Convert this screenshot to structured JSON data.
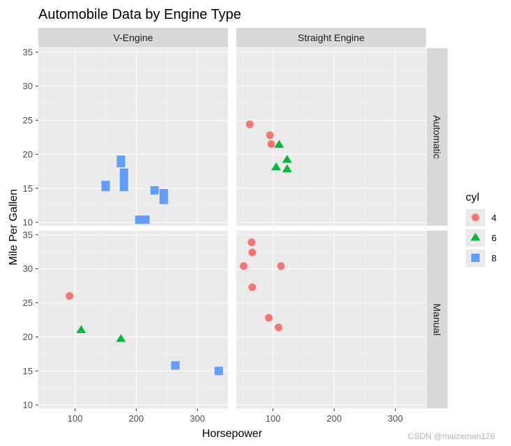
{
  "chart_data": {
    "type": "scatter",
    "title": "Automobile Data by Engine Type",
    "xlabel": "Horsepower",
    "ylabel": "Mile Per Gallen",
    "xlim": [
      40,
      350
    ],
    "ylim": [
      9.5,
      35.6
    ],
    "x_ticks": [
      100,
      200,
      300
    ],
    "y_ticks": [
      10,
      15,
      20,
      25,
      30,
      35
    ],
    "grid": true,
    "facet_columns": [
      "V-Engine",
      "Straight Engine"
    ],
    "facet_rows": [
      "Automatic",
      "Manual"
    ],
    "legend": {
      "title": "cyl",
      "position": "right",
      "entries": [
        "4",
        "6",
        "8"
      ]
    },
    "series": [
      {
        "name": "4",
        "shape": "circle",
        "color": "#F8766D"
      },
      {
        "name": "6",
        "shape": "triangle",
        "color": "#00BA38"
      },
      {
        "name": "8",
        "shape": "square",
        "color": "#619CFF"
      }
    ],
    "points": [
      {
        "column": "V-Engine",
        "row": "Automatic",
        "cyl": "8",
        "hp": 175,
        "mpg": 18.7
      },
      {
        "column": "V-Engine",
        "row": "Automatic",
        "cyl": "8",
        "hp": 180,
        "mpg": 16.4
      },
      {
        "column": "V-Engine",
        "row": "Automatic",
        "cyl": "8",
        "hp": 180,
        "mpg": 17.3
      },
      {
        "column": "V-Engine",
        "row": "Automatic",
        "cyl": "8",
        "hp": 180,
        "mpg": 15.2
      },
      {
        "column": "V-Engine",
        "row": "Automatic",
        "cyl": "8",
        "hp": 150,
        "mpg": 15.5
      },
      {
        "column": "V-Engine",
        "row": "Automatic",
        "cyl": "8",
        "hp": 150,
        "mpg": 15.2
      },
      {
        "column": "V-Engine",
        "row": "Automatic",
        "cyl": "8",
        "hp": 175,
        "mpg": 19.2
      },
      {
        "column": "V-Engine",
        "row": "Automatic",
        "cyl": "8",
        "hp": 245,
        "mpg": 14.3
      },
      {
        "column": "V-Engine",
        "row": "Automatic",
        "cyl": "8",
        "hp": 245,
        "mpg": 13.3
      },
      {
        "column": "V-Engine",
        "row": "Automatic",
        "cyl": "8",
        "hp": 230,
        "mpg": 14.7
      },
      {
        "column": "V-Engine",
        "row": "Automatic",
        "cyl": "8",
        "hp": 205,
        "mpg": 10.4
      },
      {
        "column": "V-Engine",
        "row": "Automatic",
        "cyl": "8",
        "hp": 215,
        "mpg": 10.4
      },
      {
        "column": "Straight Engine",
        "row": "Automatic",
        "cyl": "4",
        "hp": 62,
        "mpg": 24.4
      },
      {
        "column": "Straight Engine",
        "row": "Automatic",
        "cyl": "4",
        "hp": 95,
        "mpg": 22.8
      },
      {
        "column": "Straight Engine",
        "row": "Automatic",
        "cyl": "4",
        "hp": 97,
        "mpg": 21.5
      },
      {
        "column": "Straight Engine",
        "row": "Automatic",
        "cyl": "6",
        "hp": 110,
        "mpg": 21.4
      },
      {
        "column": "Straight Engine",
        "row": "Automatic",
        "cyl": "6",
        "hp": 105,
        "mpg": 18.1
      },
      {
        "column": "Straight Engine",
        "row": "Automatic",
        "cyl": "6",
        "hp": 123,
        "mpg": 19.2
      },
      {
        "column": "Straight Engine",
        "row": "Automatic",
        "cyl": "6",
        "hp": 123,
        "mpg": 17.8
      },
      {
        "column": "V-Engine",
        "row": "Manual",
        "cyl": "4",
        "hp": 91,
        "mpg": 26.0
      },
      {
        "column": "V-Engine",
        "row": "Manual",
        "cyl": "6",
        "hp": 110,
        "mpg": 21.0
      },
      {
        "column": "V-Engine",
        "row": "Manual",
        "cyl": "6",
        "hp": 175,
        "mpg": 19.7
      },
      {
        "column": "V-Engine",
        "row": "Manual",
        "cyl": "8",
        "hp": 264,
        "mpg": 15.8
      },
      {
        "column": "V-Engine",
        "row": "Manual",
        "cyl": "8",
        "hp": 335,
        "mpg": 15.0
      },
      {
        "column": "Straight Engine",
        "row": "Manual",
        "cyl": "4",
        "hp": 66,
        "mpg": 32.4
      },
      {
        "column": "Straight Engine",
        "row": "Manual",
        "cyl": "4",
        "hp": 52,
        "mpg": 30.4
      },
      {
        "column": "Straight Engine",
        "row": "Manual",
        "cyl": "4",
        "hp": 65,
        "mpg": 33.9
      },
      {
        "column": "Straight Engine",
        "row": "Manual",
        "cyl": "4",
        "hp": 66,
        "mpg": 27.3
      },
      {
        "column": "Straight Engine",
        "row": "Manual",
        "cyl": "4",
        "hp": 113,
        "mpg": 30.4
      },
      {
        "column": "Straight Engine",
        "row": "Manual",
        "cyl": "4",
        "hp": 109,
        "mpg": 21.4
      },
      {
        "column": "Straight Engine",
        "row": "Manual",
        "cyl": "4",
        "hp": 93,
        "mpg": 22.8
      }
    ]
  },
  "watermark": "CSDN @maizeman126"
}
